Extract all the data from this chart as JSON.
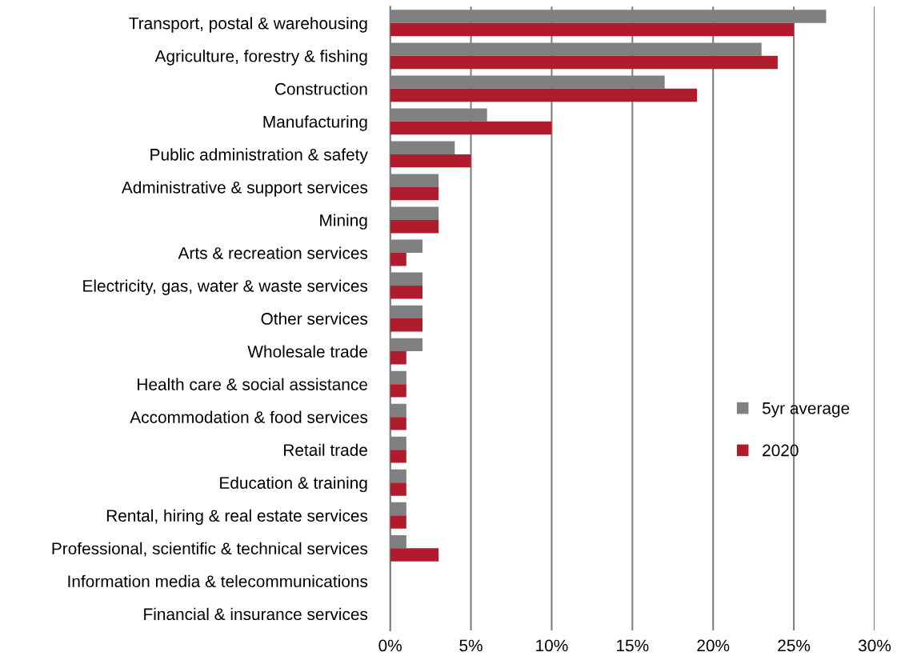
{
  "chart_data": {
    "type": "bar",
    "orientation": "horizontal",
    "categories": [
      "Transport, postal & warehousing",
      "Agriculture, forestry & fishing",
      "Construction",
      "Manufacturing",
      "Public administration & safety",
      "Administrative & support services",
      "Mining",
      "Arts & recreation services",
      "Electricity, gas, water & waste services",
      "Other services",
      "Wholesale trade",
      "Health care & social assistance",
      "Accommodation & food services",
      "Retail trade",
      "Education & training",
      "Rental, hiring & real estate services",
      "Professional, scientific & technical services",
      "Information media & telecommunications",
      "Financial & insurance services"
    ],
    "series": [
      {
        "name": "5yr average",
        "color": "#808080",
        "values": [
          27,
          23,
          17,
          6,
          4,
          3,
          3,
          2,
          2,
          2,
          2,
          1,
          1,
          1,
          1,
          1,
          1,
          0,
          0
        ]
      },
      {
        "name": "2020",
        "color": "#b01c2e",
        "values": [
          25,
          24,
          19,
          10,
          5,
          3,
          3,
          1,
          2,
          2,
          1,
          1,
          1,
          1,
          1,
          1,
          3,
          0,
          0
        ]
      }
    ],
    "xlim": [
      0,
      30
    ],
    "xticks": [
      {
        "value": 0,
        "label": "0%"
      },
      {
        "value": 5,
        "label": "5%"
      },
      {
        "value": 10,
        "label": "10%"
      },
      {
        "value": 15,
        "label": "15%"
      },
      {
        "value": 20,
        "label": "20%"
      },
      {
        "value": 25,
        "label": "25%"
      },
      {
        "value": 30,
        "label": "30%"
      }
    ],
    "grid": "x",
    "legend": "right"
  }
}
